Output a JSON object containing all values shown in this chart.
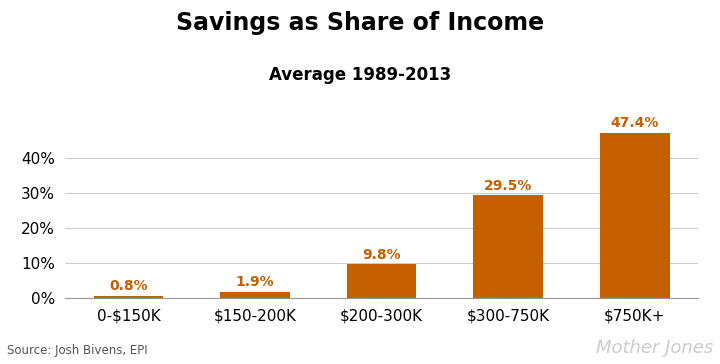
{
  "title": "Savings as Share of Income",
  "subtitle": "Average 1989-2013",
  "categories": [
    "0-$150K",
    "$150-200K",
    "$200-300K",
    "$300-750K",
    "$750K+"
  ],
  "values": [
    0.8,
    1.9,
    9.8,
    29.5,
    47.4
  ],
  "labels": [
    "0.8%",
    "1.9%",
    "9.8%",
    "29.5%",
    "47.4%"
  ],
  "bar_color": "#C65F00",
  "label_color": "#C65F00",
  "background_color": "#FFFFFF",
  "ylim": [
    0,
    52
  ],
  "yticks": [
    0,
    10,
    20,
    30,
    40
  ],
  "ytick_labels": [
    "0%",
    "10%",
    "20%",
    "30%",
    "40%"
  ],
  "title_fontsize": 17,
  "subtitle_fontsize": 12,
  "tick_fontsize": 11,
  "label_fontsize": 10,
  "source_text": "Source: Josh Bivens, EPI",
  "watermark": "Mother Jones",
  "watermark_color": "#CCCCCC",
  "grid_color": "#CCCCCC",
  "bar_width": 0.55
}
